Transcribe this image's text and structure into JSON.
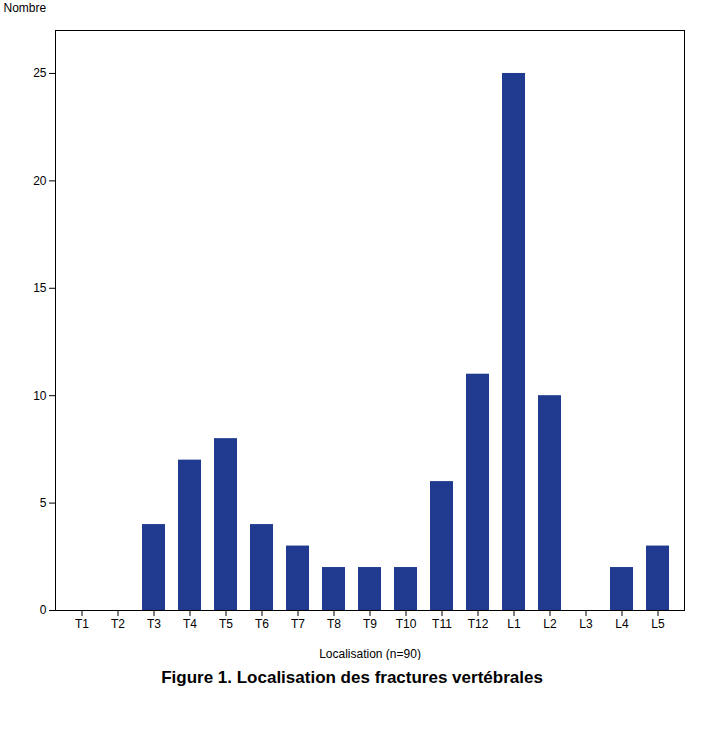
{
  "chart_data": {
    "type": "bar",
    "title": "Figure 1. Localisation des fractures vertébrales",
    "categories": [
      "T1",
      "T2",
      "T3",
      "T4",
      "T5",
      "T6",
      "T7",
      "T8",
      "T9",
      "T10",
      "T11",
      "T12",
      "L1",
      "L2",
      "L3",
      "L4",
      "L5"
    ],
    "values": [
      0,
      0,
      4,
      7,
      8,
      4,
      3,
      2,
      2,
      2,
      6,
      11,
      25,
      10,
      0,
      2,
      3
    ],
    "color": "#1F3A8F",
    "xlabel": "Localisation (n=90)",
    "ylabel": "Nombre",
    "ylim": [
      0,
      27
    ],
    "yticks": [
      0,
      5,
      10,
      15,
      20,
      25
    ],
    "grid": false
  }
}
